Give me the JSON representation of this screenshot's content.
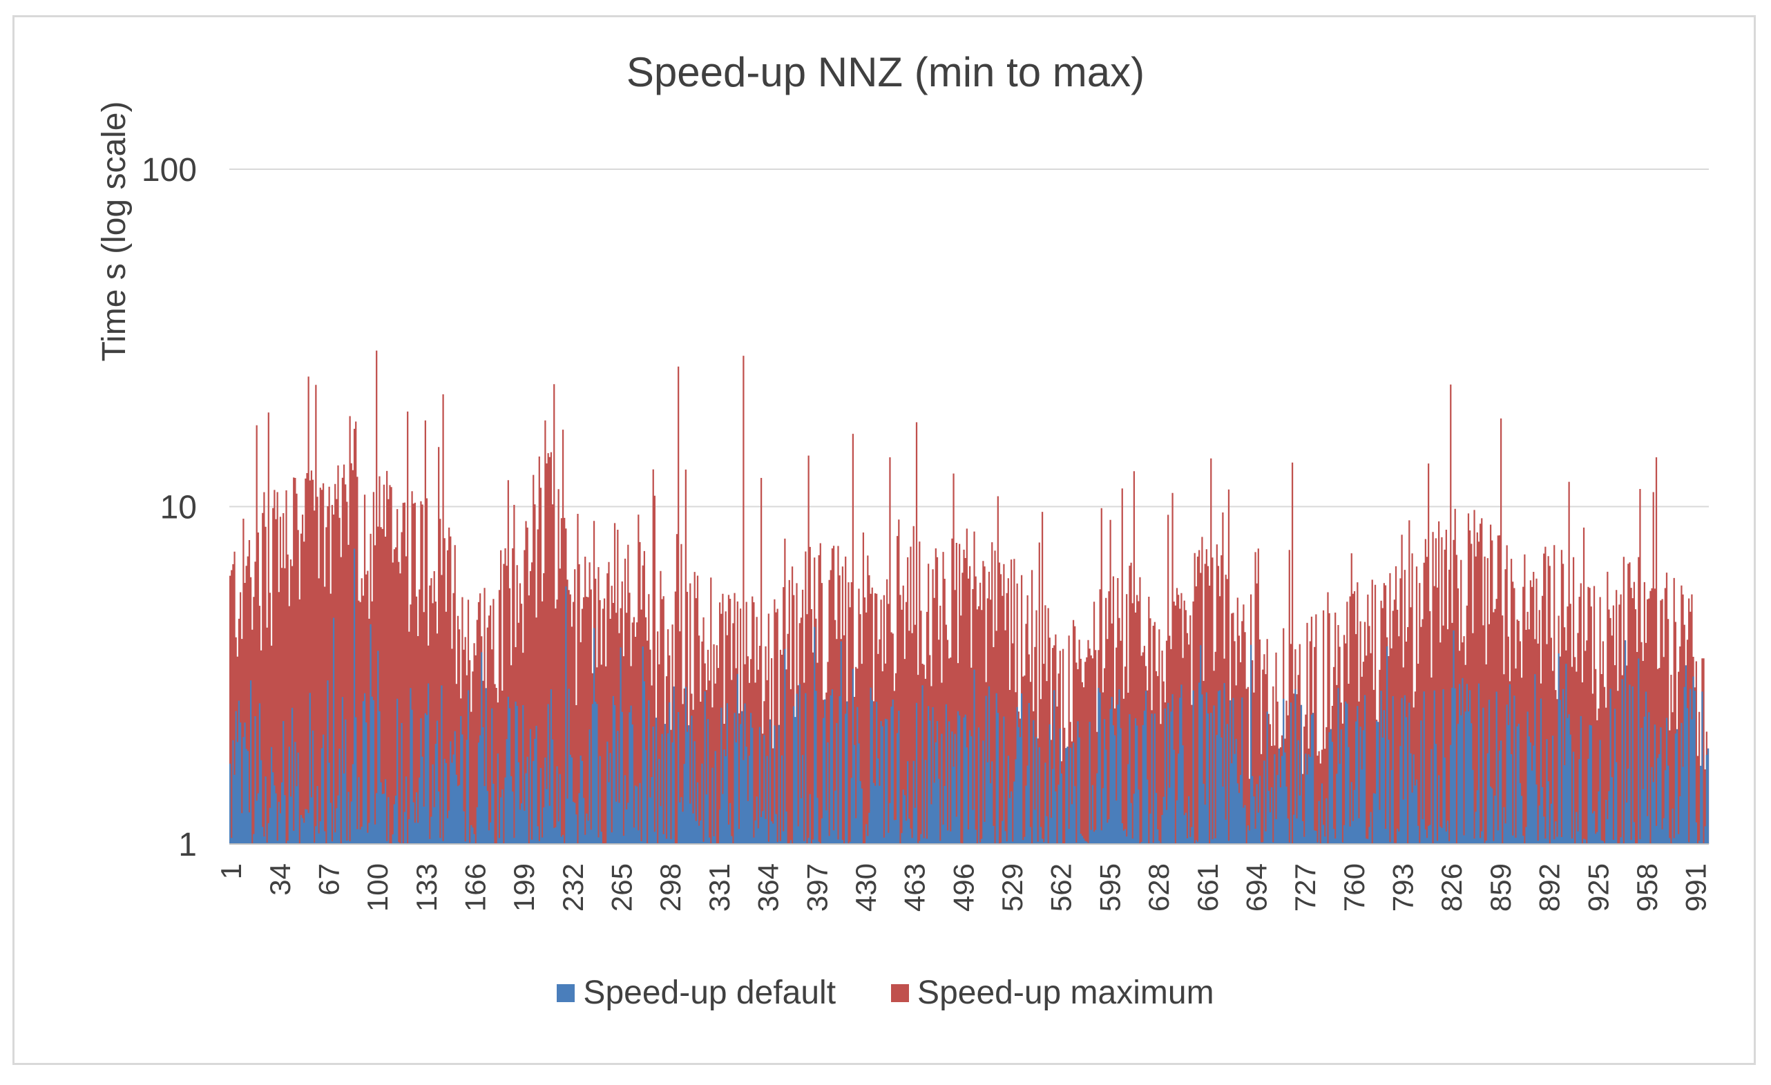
{
  "chart_data": {
    "type": "bar",
    "stacked": true,
    "title": "Speed-up NNZ (min to max)",
    "xlabel": "",
    "ylabel": "Time  s (log scale)",
    "yscale": "log",
    "ylim": [
      1,
      100
    ],
    "y_ticks": [
      "1",
      "10",
      "100"
    ],
    "n_points": 1000,
    "x_ticks": [
      "1",
      "34",
      "67",
      "100",
      "133",
      "166",
      "199",
      "232",
      "265",
      "298",
      "331",
      "364",
      "397",
      "430",
      "463",
      "496",
      "529",
      "562",
      "595",
      "628",
      "661",
      "694",
      "727",
      "760",
      "793",
      "826",
      "859",
      "892",
      "925",
      "958",
      "991"
    ],
    "series": [
      {
        "name": "Speed-up default",
        "color": "#4a7ebb",
        "typical_range": [
          1.0,
          3.0
        ],
        "spikes": [
          {
            "x": 85,
            "value": 7.5
          },
          {
            "x": 985,
            "value": 6.8
          },
          {
            "x": 828,
            "value": 4.3
          },
          {
            "x": 228,
            "value": 5.8
          }
        ]
      },
      {
        "name": "Speed-up maximum",
        "color": "#c0504d",
        "envelope": [
          {
            "x": 1,
            "value": 6.0
          },
          {
            "x": 20,
            "value": 8.0
          },
          {
            "x": 40,
            "value": 9.0
          },
          {
            "x": 70,
            "value": 10.0
          },
          {
            "x": 100,
            "value": 10.0
          },
          {
            "x": 133,
            "value": 8.5
          },
          {
            "x": 150,
            "value": 6.5
          },
          {
            "x": 166,
            "value": 4.0
          },
          {
            "x": 199,
            "value": 7.5
          },
          {
            "x": 215,
            "value": 12.0
          },
          {
            "x": 232,
            "value": 5.0
          },
          {
            "x": 265,
            "value": 7.0
          },
          {
            "x": 298,
            "value": 4.5
          },
          {
            "x": 331,
            "value": 5.0
          },
          {
            "x": 364,
            "value": 4.0
          },
          {
            "x": 397,
            "value": 6.0
          },
          {
            "x": 430,
            "value": 5.5
          },
          {
            "x": 463,
            "value": 6.5
          },
          {
            "x": 496,
            "value": 6.5
          },
          {
            "x": 529,
            "value": 5.5
          },
          {
            "x": 562,
            "value": 3.2
          },
          {
            "x": 595,
            "value": 4.5
          },
          {
            "x": 612,
            "value": 5.5
          },
          {
            "x": 628,
            "value": 3.2
          },
          {
            "x": 661,
            "value": 6.5
          },
          {
            "x": 694,
            "value": 3.0
          },
          {
            "x": 727,
            "value": 3.5
          },
          {
            "x": 760,
            "value": 4.5
          },
          {
            "x": 793,
            "value": 5.0
          },
          {
            "x": 826,
            "value": 7.5
          },
          {
            "x": 859,
            "value": 6.5
          },
          {
            "x": 892,
            "value": 6.0
          },
          {
            "x": 925,
            "value": 5.0
          },
          {
            "x": 958,
            "value": 5.5
          },
          {
            "x": 991,
            "value": 4.0
          },
          {
            "x": 1000,
            "value": 2.8
          }
        ],
        "spikes": [
          {
            "x": 27,
            "value": 19
          },
          {
            "x": 100,
            "value": 29
          },
          {
            "x": 133,
            "value": 18
          },
          {
            "x": 214,
            "value": 18
          },
          {
            "x": 304,
            "value": 26
          },
          {
            "x": 348,
            "value": 28
          },
          {
            "x": 826,
            "value": 23
          },
          {
            "x": 965,
            "value": 14
          },
          {
            "x": 719,
            "value": 13.5
          },
          {
            "x": 85,
            "value": 17
          },
          {
            "x": 447,
            "value": 14
          }
        ]
      }
    ]
  }
}
